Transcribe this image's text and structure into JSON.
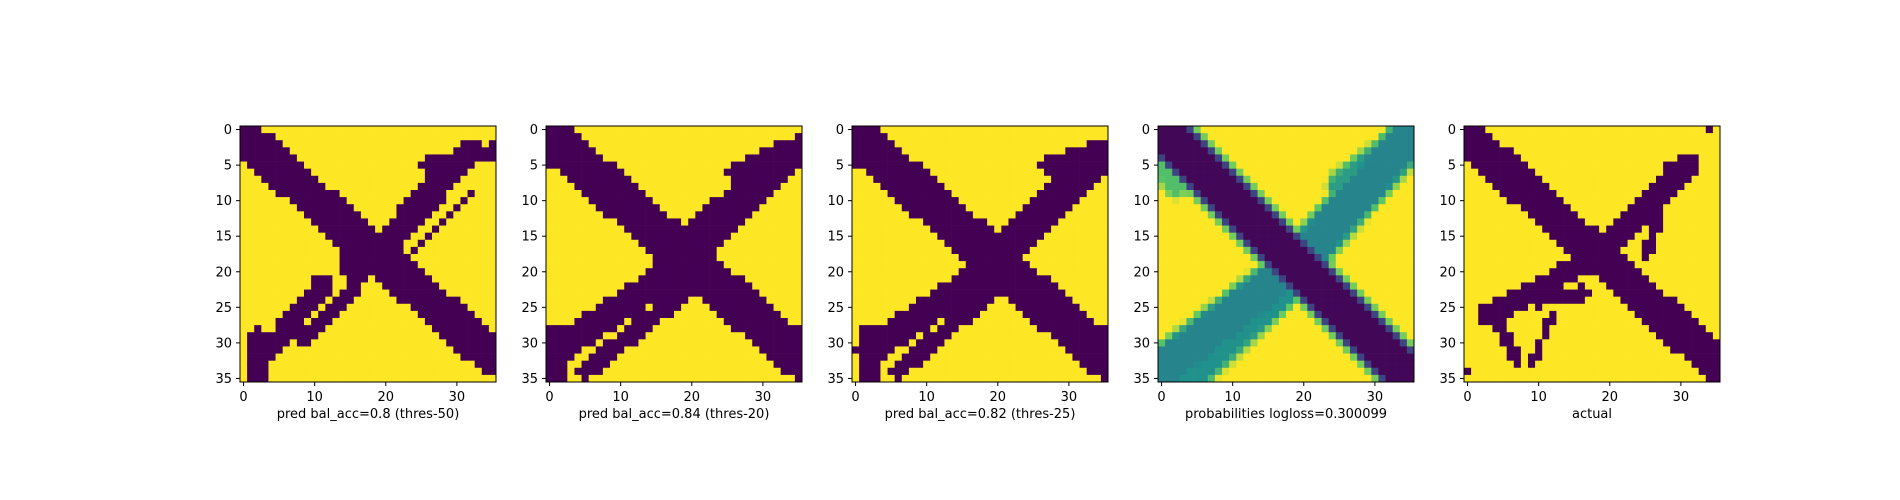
{
  "chart_data": [
    {
      "type": "heatmap",
      "colormap": "viridis",
      "grid_size": [
        36,
        36
      ],
      "xlabel": "pred bal_acc=0.8 (thres-50)",
      "xticks": [
        0,
        10,
        20,
        30
      ],
      "yticks": [
        0,
        5,
        10,
        15,
        20,
        25,
        30,
        35
      ],
      "xlim": [
        -0.5,
        35.5
      ],
      "ylim": [
        35.5,
        -0.5
      ],
      "value_range": [
        0,
        1
      ],
      "strokes": [
        {
          "from": [
            0,
            1
          ],
          "to": [
            35,
            32
          ],
          "width": 2.7,
          "value": 0
        },
        {
          "from": [
            32,
            3
          ],
          "to": [
            18,
            18
          ],
          "width": 1.9,
          "value": 0
        },
        {
          "from": [
            18,
            18
          ],
          "to": [
            16,
            19
          ],
          "width": 2.5,
          "value": 0
        },
        {
          "from": [
            11,
            22
          ],
          "to": [
            2,
            33
          ],
          "width": 1.5,
          "value": 0
        },
        {
          "from": [
            16,
            22
          ],
          "to": [
            8,
            30
          ],
          "width": 0.9,
          "value": 0
        },
        {
          "from": [
            26,
            5
          ],
          "to": [
            36,
            3
          ],
          "width": 1.2,
          "value": 0
        },
        {
          "from": [
            32,
            9
          ],
          "to": [
            24,
            17
          ],
          "width": 0.6,
          "value": 0
        },
        {
          "from": [
            2,
            29
          ],
          "to": [
            2,
            36
          ],
          "width": 1.0,
          "value": 0
        }
      ]
    },
    {
      "type": "heatmap",
      "colormap": "viridis",
      "grid_size": [
        36,
        36
      ],
      "xlabel": "pred bal_acc=0.84 (thres-20)",
      "xticks": [
        0,
        10,
        20,
        30
      ],
      "yticks": [
        0,
        5,
        10,
        15,
        20,
        25,
        30,
        35
      ],
      "xlim": [
        -0.5,
        35.5
      ],
      "ylim": [
        35.5,
        -0.5
      ],
      "value_range": [
        0,
        1
      ],
      "strokes": [
        {
          "from": [
            0,
            1
          ],
          "to": [
            35,
            32
          ],
          "width": 3.0,
          "value": 0
        },
        {
          "from": [
            33,
            4
          ],
          "to": [
            16,
            21
          ],
          "width": 2.5,
          "value": 0
        },
        {
          "from": [
            16,
            21
          ],
          "to": [
            1,
            31
          ],
          "width": 2.2,
          "value": 0
        },
        {
          "from": [
            20,
            22
          ],
          "to": [
            5,
            34
          ],
          "width": 1.4,
          "value": 0
        },
        {
          "from": [
            26,
            6
          ],
          "to": [
            36,
            2
          ],
          "width": 1.4,
          "value": 0
        },
        {
          "from": [
            23,
            11
          ],
          "to": [
            20,
            14
          ],
          "width": 1.0,
          "value": 0
        },
        {
          "from": [
            1,
            29
          ],
          "to": [
            1,
            36
          ],
          "width": 1.5,
          "value": 0
        }
      ]
    },
    {
      "type": "heatmap",
      "colormap": "viridis",
      "grid_size": [
        36,
        36
      ],
      "xlabel": "pred bal_acc=0.82 (thres-25)",
      "xticks": [
        0,
        10,
        20,
        30
      ],
      "yticks": [
        0,
        5,
        10,
        15,
        20,
        25,
        30,
        35
      ],
      "xlim": [
        -0.5,
        35.5
      ],
      "ylim": [
        35.5,
        -0.5
      ],
      "value_range": [
        0,
        1
      ],
      "strokes": [
        {
          "from": [
            0,
            1
          ],
          "to": [
            35,
            32
          ],
          "width": 3.0,
          "value": 0
        },
        {
          "from": [
            34,
            4
          ],
          "to": [
            17,
            21
          ],
          "width": 2.3,
          "value": 0
        },
        {
          "from": [
            17,
            21
          ],
          "to": [
            2,
            31
          ],
          "width": 2.0,
          "value": 0
        },
        {
          "from": [
            20,
            22
          ],
          "to": [
            6,
            34
          ],
          "width": 1.2,
          "value": 0
        },
        {
          "from": [
            27,
            5
          ],
          "to": [
            36,
            3
          ],
          "width": 1.4,
          "value": 0
        },
        {
          "from": [
            2,
            29
          ],
          "to": [
            2,
            36
          ],
          "width": 1.6,
          "value": 0
        }
      ]
    },
    {
      "type": "heatmap",
      "colormap": "viridis",
      "grid_size": [
        36,
        36
      ],
      "xlabel": "probabilities logloss=0.300099",
      "xticks": [
        0,
        10,
        20,
        30
      ],
      "yticks": [
        0,
        5,
        10,
        15,
        20,
        25,
        30,
        35
      ],
      "xlim": [
        -0.5,
        35.5
      ],
      "ylim": [
        35.5,
        -0.5
      ],
      "value_range": [
        0,
        1
      ],
      "strokes": [
        {
          "from": [
            0,
            0
          ],
          "to": [
            35,
            35
          ],
          "width": 2.6,
          "value": 0.02
        },
        {
          "from": [
            34,
            2
          ],
          "to": [
            19,
            19
          ],
          "width": 2.4,
          "value": 0.45
        },
        {
          "from": [
            19,
            19
          ],
          "to": [
            1,
            33
          ],
          "width": 2.4,
          "value": 0.45
        },
        {
          "from": [
            18,
            22
          ],
          "to": [
            4,
            35
          ],
          "width": 1.6,
          "value": 0.5
        },
        {
          "from": [
            26,
            8
          ],
          "to": [
            34,
            2
          ],
          "width": 2.0,
          "value": 0.55
        },
        {
          "from": [
            0,
            5
          ],
          "to": [
            2,
            8
          ],
          "width": 1.0,
          "value": 0.7
        }
      ]
    },
    {
      "type": "heatmap",
      "colormap": "viridis",
      "grid_size": [
        36,
        36
      ],
      "xlabel": "actual",
      "xticks": [
        0,
        10,
        20,
        30
      ],
      "yticks": [
        0,
        5,
        10,
        15,
        20,
        25,
        30,
        35
      ],
      "xlim": [
        -0.5,
        35.5
      ],
      "ylim": [
        35.5,
        -0.5
      ],
      "value_range": [
        0,
        1
      ],
      "strokes": [
        {
          "from": [
            0,
            1
          ],
          "to": [
            35,
            33
          ],
          "width": 2.6,
          "value": 0
        },
        {
          "from": [
            31,
            5
          ],
          "to": [
            18,
            18
          ],
          "width": 1.8,
          "value": 0
        },
        {
          "from": [
            18,
            18
          ],
          "to": [
            3,
            26
          ],
          "width": 1.5,
          "value": 0
        },
        {
          "from": [
            16,
            23
          ],
          "to": [
            10,
            24
          ],
          "width": 1.0,
          "value": 0
        },
        {
          "from": [
            28,
            5
          ],
          "to": [
            32,
            5
          ],
          "width": 0.8,
          "value": 0
        },
        {
          "from": [
            27,
            12
          ],
          "to": [
            25,
            18
          ],
          "width": 0.7,
          "value": 0
        },
        {
          "from": [
            4,
            26
          ],
          "to": [
            7,
            33
          ],
          "width": 0.8,
          "value": 0
        },
        {
          "from": [
            12,
            26
          ],
          "to": [
            9,
            33
          ],
          "width": 0.6,
          "value": 0
        },
        {
          "from": [
            0,
            34
          ],
          "to": [
            0,
            34
          ],
          "width": 0.6,
          "value": 0
        },
        {
          "from": [
            34,
            0
          ],
          "to": [
            34,
            0
          ],
          "width": 0.6,
          "value": 0
        }
      ]
    }
  ]
}
